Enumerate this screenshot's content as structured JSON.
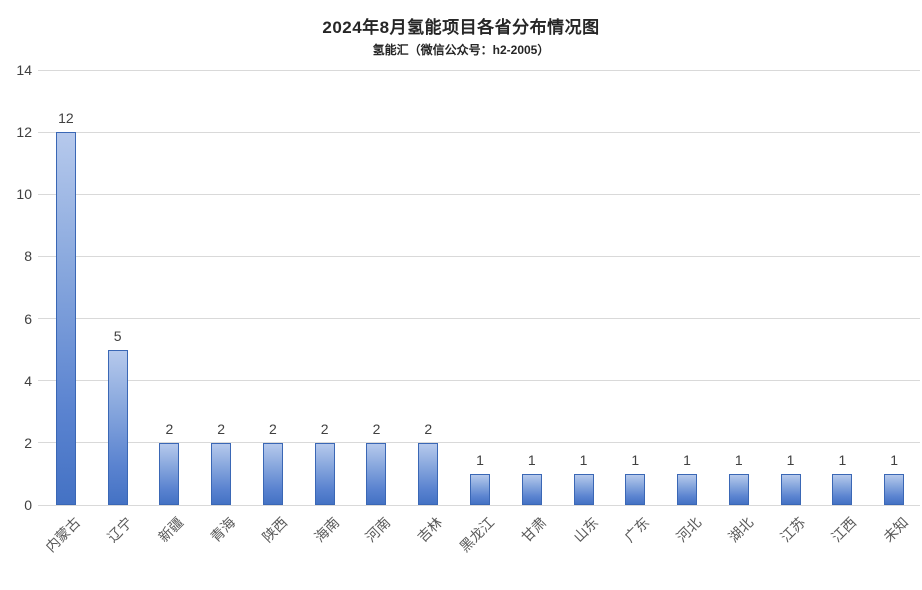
{
  "header": {
    "title": "2024年8月氢能项目各省分布情况图",
    "subtitle": "氢能汇（微信公众号：h2-2005）"
  },
  "chart_data": {
    "type": "bar",
    "title": "2024年8月氢能项目各省分布情况图",
    "subtitle": "氢能汇（微信公众号：h2-2005）",
    "categories": [
      "内蒙古",
      "辽宁",
      "新疆",
      "青海",
      "陕西",
      "海南",
      "河南",
      "吉林",
      "黑龙江",
      "甘肃",
      "山东",
      "广东",
      "河北",
      "湖北",
      "江苏",
      "江西",
      "未知"
    ],
    "values": [
      12,
      5,
      2,
      2,
      2,
      2,
      2,
      2,
      1,
      1,
      1,
      1,
      1,
      1,
      1,
      1,
      1
    ],
    "data_labels": [
      12,
      5,
      2,
      2,
      2,
      2,
      2,
      2,
      1,
      1,
      1,
      1,
      1,
      1,
      1,
      1,
      1
    ],
    "xlabel": "",
    "ylabel": "",
    "ylim": [
      0,
      14
    ],
    "ytick_step": 2,
    "yticks": [
      0,
      2,
      4,
      6,
      8,
      10,
      12,
      14
    ],
    "grid": true,
    "legend": "none",
    "colors": {
      "bar_fill_top": "#b6c9ec",
      "bar_fill_bottom": "#4472c4",
      "bar_border": "#3a67b5",
      "gridline": "#d9d9d9",
      "axis_tick_text": "#404040",
      "data_label_text": "#404040",
      "category_text": "#595959",
      "title_text": "#262626",
      "background": "#ffffff"
    }
  }
}
